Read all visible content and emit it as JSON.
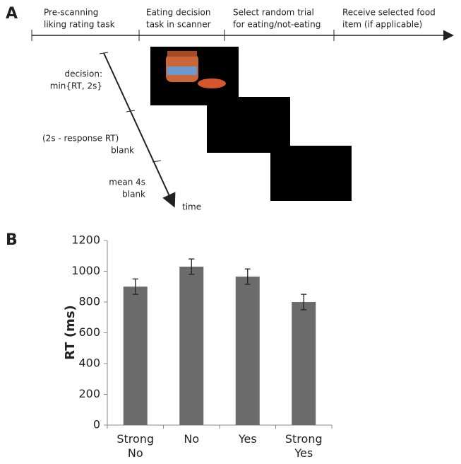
{
  "panel_a": {
    "label": "A",
    "steps": [
      [
        "Pre-scanning",
        "liking rating task"
      ],
      [
        "Eating decision",
        "task in scanner"
      ],
      [
        "Select random trial",
        "for eating/not-eating"
      ],
      [
        "Receive selected food",
        "item (if applicable)"
      ]
    ],
    "phases": [
      [
        "decision:",
        "min{RT, 2s}"
      ],
      [
        "(2s - response RT)",
        "blank"
      ],
      [
        "mean 4s",
        "blank"
      ]
    ],
    "time_label": "time"
  },
  "chart_data": {
    "type": "bar",
    "panel_label": "B",
    "ylabel": "RT (ms)",
    "categories": [
      "Strong No",
      "No",
      "Yes",
      "Strong Yes"
    ],
    "values": [
      900,
      1030,
      965,
      800
    ],
    "errors": [
      50,
      50,
      50,
      50
    ],
    "color": "#6b6b6b",
    "ylim": [
      0,
      1200
    ],
    "yticks": [
      0,
      200,
      400,
      600,
      800,
      1000,
      1200
    ]
  }
}
